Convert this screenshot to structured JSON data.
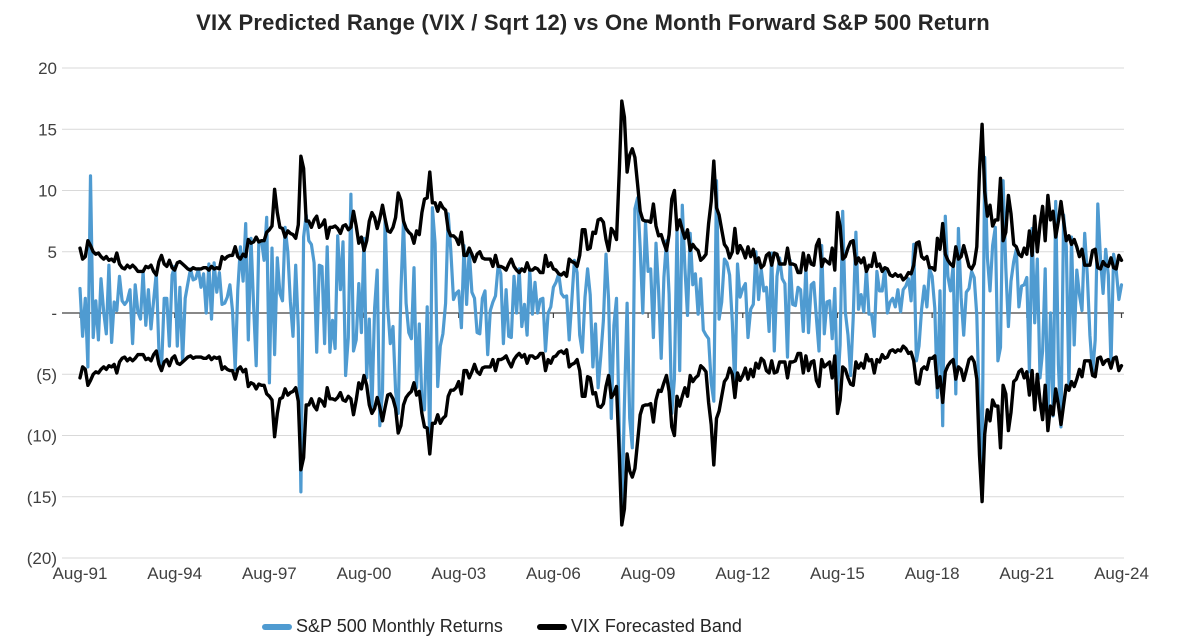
{
  "header": {
    "title": "VIX Predicted Range (VIX / Sqrt 12) vs One Month Forward S&P 500 Return"
  },
  "colors": {
    "sp500_line": "#4f9bd1",
    "vix_band_line": "#000000",
    "gridline": "#d9d9d9",
    "zero_line": "#404040",
    "axis_text": "#404040",
    "title_text": "#262626",
    "background": "#ffffff"
  },
  "chart_data": {
    "type": "line",
    "title": "VIX Predicted Range (VIX / Sqrt 12) vs One Month Forward S&P 500 Return",
    "xlabel": "",
    "ylabel": "",
    "x_axis": {
      "start": "Aug-1991",
      "end": "Aug-2024",
      "cadence": "monthly",
      "tick_labels": [
        "Aug-91",
        "Aug-94",
        "Aug-97",
        "Aug-00",
        "Aug-03",
        "Aug-06",
        "Aug-09",
        "Aug-12",
        "Aug-15",
        "Aug-18",
        "Aug-21",
        "Aug-24"
      ],
      "tick_every_months": 36
    },
    "y_axis": {
      "min": -20,
      "max": 20,
      "tick_values": [
        20,
        15,
        10,
        5,
        0,
        -5,
        -10,
        -15,
        -20
      ],
      "tick_labels": [
        "20",
        "15",
        "10",
        "5",
        "-",
        "(5)",
        "(10)",
        "(15)",
        "(20)"
      ]
    },
    "grid": {
      "horizontal_gridlines": true,
      "zero_axis_line": true,
      "x_ticks_on_zero_line": true
    },
    "legend_position": "bottom",
    "series": [
      {
        "name": "S&P 500 Monthly Returns",
        "color": "#4f9bd1",
        "values": [
          2.0,
          -1.9,
          1.2,
          -4.4,
          11.2,
          -2.0,
          1.0,
          -2.2,
          2.8,
          0.1,
          -1.7,
          3.9,
          -2.4,
          0.9,
          0.2,
          3.0,
          1.0,
          0.7,
          1.0,
          1.9,
          -2.5,
          2.3,
          0.1,
          -0.5,
          3.4,
          -1.0,
          1.9,
          -1.3,
          1.0,
          3.3,
          -3.0,
          -4.6,
          1.2,
          1.2,
          -2.7,
          3.1,
          3.8,
          -2.7,
          2.1,
          -4.0,
          1.2,
          2.4,
          3.6,
          2.7,
          2.8,
          3.6,
          2.1,
          3.2,
          0.0,
          4.0,
          -0.5,
          4.1,
          1.7,
          3.3,
          0.7,
          0.8,
          1.3,
          2.3,
          0.2,
          -4.6,
          1.9,
          5.4,
          2.6,
          7.3,
          -2.2,
          6.1,
          0.6,
          -4.3,
          5.8,
          5.9,
          4.3,
          7.8,
          -5.7,
          5.3,
          -3.4,
          4.5,
          1.6,
          1.0,
          7.0,
          5.0,
          0.9,
          -1.9,
          3.9,
          -1.2,
          -14.6,
          6.2,
          8.0,
          5.9,
          5.6,
          4.1,
          -3.2,
          3.9,
          3.8,
          -2.5,
          5.4,
          -3.2,
          -0.6,
          -2.9,
          6.3,
          1.9,
          5.8,
          -5.1,
          -2.0,
          9.7,
          -3.1,
          -2.2,
          2.4,
          -1.6,
          6.1,
          -5.3,
          -0.5,
          -8.0,
          0.4,
          3.5,
          -9.2,
          -6.4,
          7.7,
          0.5,
          -2.5,
          -1.1,
          -6.4,
          -8.2,
          1.8,
          7.5,
          0.8,
          -1.6,
          -2.1,
          3.7,
          -6.1,
          -0.9,
          -7.2,
          -7.9,
          0.5,
          -11.0,
          8.6,
          5.7,
          -6.0,
          -2.7,
          -1.7,
          0.8,
          8.1,
          5.1,
          1.1,
          1.6,
          1.8,
          -1.2,
          5.5,
          0.7,
          5.1,
          1.7,
          1.2,
          -1.6,
          -1.7,
          1.2,
          1.8,
          -3.4,
          0.2,
          0.9,
          1.4,
          3.9,
          3.2,
          -2.5,
          1.9,
          -1.9,
          -2.0,
          3.0,
          0.0,
          3.6,
          -1.1,
          0.7,
          -1.8,
          3.5,
          -0.1,
          2.5,
          0.0,
          1.1,
          1.2,
          -3.1,
          0.0,
          0.5,
          2.1,
          2.5,
          3.2,
          1.6,
          1.3,
          1.4,
          -2.2,
          1.0,
          4.3,
          3.3,
          -1.8,
          -3.2,
          1.3,
          3.6,
          1.5,
          -4.4,
          -0.9,
          -6.1,
          -3.5,
          -0.6,
          4.8,
          1.1,
          -8.6,
          -1.0,
          1.2,
          -9.1,
          -16.9,
          -7.5,
          0.8,
          -8.6,
          -11.0,
          8.5,
          9.4,
          5.3,
          0.0,
          7.4,
          3.4,
          3.6,
          -2.0,
          5.7,
          1.8,
          -3.7,
          2.9,
          5.9,
          1.5,
          -8.2,
          -5.4,
          6.9,
          -4.7,
          8.8,
          3.7,
          -0.2,
          6.5,
          2.3,
          3.2,
          -0.1,
          2.8,
          -1.4,
          -1.8,
          -2.1,
          -5.7,
          -7.2,
          10.8,
          -0.5,
          0.9,
          4.4,
          4.1,
          3.1,
          -0.7,
          -6.3,
          4.0,
          1.3,
          2.0,
          2.4,
          -2.0,
          0.3,
          0.7,
          5.0,
          1.1,
          3.6,
          1.8,
          2.1,
          -1.5,
          4.9,
          -3.1,
          3.0,
          4.5,
          2.8,
          2.4,
          -3.6,
          4.3,
          0.7,
          0.6,
          2.1,
          1.9,
          -1.5,
          3.8,
          -1.6,
          2.3,
          2.5,
          -0.4,
          -3.1,
          5.5,
          -1.7,
          0.9,
          1.0,
          -2.1,
          2.0,
          -6.3,
          -2.6,
          8.3,
          0.1,
          -1.8,
          -5.1,
          -0.4,
          6.6,
          0.3,
          1.5,
          0.1,
          3.6,
          -0.1,
          -0.1,
          -1.9,
          3.4,
          1.8,
          1.8,
          3.7,
          0.0,
          0.9,
          1.2,
          0.5,
          1.9,
          0.1,
          1.9,
          2.2,
          2.8,
          1.0,
          5.6,
          -3.9,
          -2.7,
          0.3,
          2.2,
          0.5,
          3.6,
          3.0,
          0.4,
          -6.9,
          1.8,
          -9.2,
          7.9,
          3.0,
          1.8,
          3.9,
          -6.6,
          6.9,
          1.3,
          -1.8,
          1.7,
          2.0,
          3.4,
          2.9,
          -0.2,
          -8.4,
          -12.5,
          12.7,
          4.5,
          1.8,
          5.5,
          7.0,
          -3.9,
          -2.8,
          10.8,
          3.7,
          -1.1,
          2.6,
          4.2,
          5.2,
          0.5,
          2.2,
          2.3,
          2.9,
          -4.8,
          6.9,
          -0.8,
          4.4,
          -5.3,
          -3.1,
          3.6,
          -8.8,
          0.0,
          -8.4,
          9.1,
          -4.2,
          -9.3,
          8.0,
          5.4,
          -5.9,
          6.2,
          -2.6,
          3.5,
          1.5,
          0.2,
          6.5,
          3.1,
          -1.8,
          -4.9,
          -2.2,
          8.9,
          4.4,
          1.6,
          5.2,
          3.1,
          -4.2,
          4.8,
          3.5,
          1.1,
          2.3
        ]
      },
      {
        "name": "VIX Forecasted Band",
        "color": "#000000",
        "note": "VIX / Sqrt(12); plotted twice as +value (upper band) and -value (lower band)",
        "values": [
          5.3,
          4.4,
          4.6,
          5.9,
          5.5,
          5.0,
          4.8,
          4.9,
          4.6,
          4.4,
          4.6,
          4.3,
          4.4,
          4.2,
          4.9,
          4.0,
          3.7,
          3.6,
          3.9,
          3.7,
          3.9,
          3.7,
          3.4,
          3.4,
          3.4,
          3.8,
          3.7,
          3.9,
          3.4,
          3.1,
          4.2,
          4.7,
          4.0,
          3.8,
          4.3,
          3.7,
          3.5,
          4.1,
          4.2,
          4.0,
          3.8,
          3.6,
          3.5,
          3.7,
          3.6,
          3.6,
          3.6,
          3.7,
          3.7,
          3.5,
          3.8,
          3.6,
          3.7,
          3.6,
          4.6,
          4.4,
          4.6,
          4.7,
          4.7,
          5.4,
          4.6,
          4.4,
          4.8,
          4.6,
          6.0,
          5.7,
          5.8,
          6.2,
          5.8,
          5.9,
          5.9,
          6.6,
          6.8,
          7.1,
          10.1,
          8.2,
          7.0,
          6.9,
          6.2,
          6.7,
          6.5,
          6.4,
          6.1,
          7.2,
          12.8,
          11.8,
          7.5,
          7.5,
          7.0,
          7.6,
          7.9,
          7.0,
          7.2,
          7.6,
          6.1,
          7.0,
          7.0,
          7.1,
          6.9,
          6.5,
          7.1,
          7.2,
          6.8,
          7.0,
          8.3,
          7.1,
          5.7,
          6.2,
          5.1,
          5.9,
          7.5,
          8.2,
          7.8,
          6.9,
          7.7,
          8.8,
          7.7,
          6.7,
          6.6,
          7.0,
          7.8,
          9.8,
          9.2,
          7.5,
          6.9,
          6.6,
          6.4,
          5.7,
          6.7,
          6.4,
          8.2,
          9.3,
          9.4,
          11.5,
          9.0,
          9.0,
          8.3,
          9.0,
          8.6,
          8.4,
          6.8,
          6.3,
          6.3,
          6.1,
          5.6,
          6.6,
          4.7,
          4.7,
          5.3,
          4.8,
          4.2,
          4.8,
          5.0,
          4.5,
          4.4,
          4.4,
          4.4,
          3.8,
          4.7,
          3.8,
          3.8,
          3.7,
          3.5,
          4.0,
          4.4,
          3.8,
          3.5,
          3.3,
          3.6,
          3.4,
          4.1,
          3.5,
          3.5,
          3.7,
          3.6,
          3.3,
          3.3,
          4.7,
          3.8,
          4.1,
          3.6,
          3.5,
          3.2,
          3.1,
          3.3,
          3.0,
          4.4,
          4.2,
          4.1,
          3.8,
          4.7,
          6.8,
          6.8,
          5.2,
          5.3,
          6.6,
          6.5,
          7.6,
          7.7,
          7.4,
          6.0,
          5.1,
          6.9,
          6.6,
          6.0,
          11.4,
          17.3,
          16.0,
          11.5,
          12.9,
          13.4,
          12.7,
          10.5,
          8.3,
          7.6,
          7.5,
          7.5,
          7.4,
          8.9,
          7.1,
          6.3,
          6.4,
          5.7,
          5.1,
          6.4,
          9.3,
          10.0,
          6.8,
          7.6,
          6.8,
          6.1,
          6.8,
          5.1,
          5.6,
          5.3,
          5.1,
          4.3,
          4.5,
          4.8,
          7.3,
          9.1,
          12.4,
          8.6,
          8.0,
          6.8,
          5.6,
          5.3,
          4.5,
          5.0,
          6.9,
          4.9,
          5.5,
          5.1,
          4.5,
          5.4,
          4.6,
          5.2,
          4.1,
          4.5,
          3.7,
          3.9,
          4.7,
          4.9,
          3.9,
          4.9,
          4.8,
          4.0,
          4.0,
          4.0,
          5.3,
          4.0,
          4.0,
          3.9,
          3.3,
          3.3,
          4.9,
          3.5,
          4.7,
          4.0,
          3.9,
          5.5,
          6.0,
          3.8,
          4.4,
          4.2,
          4.0,
          5.3,
          3.5,
          8.2,
          7.1,
          4.4,
          4.6,
          5.3,
          5.8,
          5.9,
          4.0,
          4.5,
          4.1,
          4.5,
          3.4,
          3.9,
          3.8,
          4.9,
          3.8,
          4.0,
          3.4,
          3.7,
          3.6,
          3.1,
          3.0,
          3.2,
          3.0,
          3.1,
          2.7,
          2.9,
          3.3,
          3.2,
          3.9,
          5.7,
          5.8,
          4.6,
          4.4,
          4.6,
          3.7,
          3.7,
          3.5,
          6.1,
          5.2,
          7.3,
          4.8,
          4.3,
          4.0,
          3.8,
          5.4,
          4.4,
          4.6,
          5.5,
          4.7,
          3.8,
          3.6,
          4.0,
          5.4,
          11.6,
          15.4,
          9.9,
          7.9,
          8.8,
          7.1,
          7.6,
          7.6,
          11.0,
          5.9,
          6.6,
          9.6,
          8.1,
          5.6,
          5.4,
          4.8,
          4.6,
          5.3,
          4.8,
          6.7,
          4.7,
          7.9,
          5.0,
          7.2,
          8.7,
          5.9,
          9.6,
          7.6,
          8.3,
          6.2,
          7.5,
          9.1,
          7.5,
          5.9,
          6.3,
          5.6,
          6.0,
          5.4,
          4.6,
          5.2,
          3.9,
          3.9,
          3.9,
          5.1,
          5.2,
          3.7,
          3.6,
          4.2,
          3.9,
          3.8,
          4.5,
          3.7,
          3.6,
          4.7,
          4.3
        ]
      }
    ]
  },
  "legend": {
    "items": [
      {
        "label": "S&P 500 Monthly Returns",
        "color": "#4f9bd1"
      },
      {
        "label": "VIX Forecasted Band",
        "color": "#000000"
      }
    ]
  }
}
